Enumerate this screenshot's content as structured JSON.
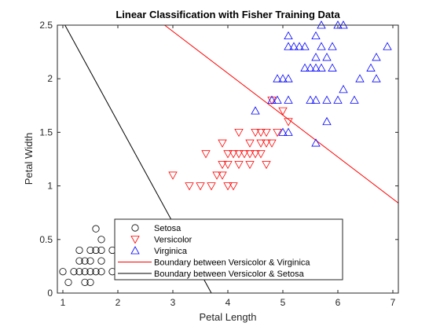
{
  "chart_data": {
    "type": "scatter",
    "title": "Linear Classification with Fisher Training Data",
    "xlabel": "Petal Length",
    "ylabel": "Petal Width",
    "xlim": [
      0.9,
      7.1
    ],
    "ylim": [
      0,
      2.5
    ],
    "xticks": [
      "1",
      "2",
      "3",
      "4",
      "5",
      "6",
      "7"
    ],
    "yticks": [
      "0",
      "0.5",
      "1",
      "1.5",
      "2",
      "2.5"
    ],
    "grid": false,
    "legend_position": "bottom-center",
    "series": [
      {
        "name": "Setosa",
        "marker": "circle",
        "color": "#000000",
        "points": [
          [
            1.0,
            0.2
          ],
          [
            1.1,
            0.1
          ],
          [
            1.2,
            0.2
          ],
          [
            1.3,
            0.2
          ],
          [
            1.3,
            0.3
          ],
          [
            1.3,
            0.4
          ],
          [
            1.4,
            0.1
          ],
          [
            1.4,
            0.2
          ],
          [
            1.4,
            0.3
          ],
          [
            1.5,
            0.1
          ],
          [
            1.5,
            0.2
          ],
          [
            1.5,
            0.3
          ],
          [
            1.5,
            0.4
          ],
          [
            1.6,
            0.2
          ],
          [
            1.6,
            0.4
          ],
          [
            1.6,
            0.6
          ],
          [
            1.7,
            0.2
          ],
          [
            1.7,
            0.3
          ],
          [
            1.7,
            0.4
          ],
          [
            1.7,
            0.5
          ],
          [
            1.9,
            0.2
          ],
          [
            1.9,
            0.4
          ]
        ]
      },
      {
        "name": "Versicolor",
        "marker": "triangle-down",
        "color": "#ff0000",
        "points": [
          [
            3.0,
            1.1
          ],
          [
            3.3,
            1.0
          ],
          [
            3.5,
            1.0
          ],
          [
            3.6,
            1.3
          ],
          [
            3.7,
            1.0
          ],
          [
            3.8,
            1.1
          ],
          [
            3.9,
            1.1
          ],
          [
            3.9,
            1.2
          ],
          [
            3.9,
            1.4
          ],
          [
            4.0,
            1.0
          ],
          [
            4.0,
            1.2
          ],
          [
            4.0,
            1.3
          ],
          [
            4.1,
            1.0
          ],
          [
            4.1,
            1.3
          ],
          [
            4.2,
            1.2
          ],
          [
            4.2,
            1.3
          ],
          [
            4.2,
            1.5
          ],
          [
            4.3,
            1.3
          ],
          [
            4.4,
            1.2
          ],
          [
            4.4,
            1.3
          ],
          [
            4.4,
            1.4
          ],
          [
            4.5,
            1.3
          ],
          [
            4.5,
            1.5
          ],
          [
            4.6,
            1.3
          ],
          [
            4.6,
            1.4
          ],
          [
            4.6,
            1.5
          ],
          [
            4.7,
            1.2
          ],
          [
            4.7,
            1.4
          ],
          [
            4.7,
            1.5
          ],
          [
            4.8,
            1.4
          ],
          [
            4.8,
            1.8
          ],
          [
            4.9,
            1.5
          ],
          [
            5.0,
            1.7
          ],
          [
            5.1,
            1.6
          ]
        ]
      },
      {
        "name": "Virginica",
        "marker": "triangle-up",
        "color": "#0000ff",
        "points": [
          [
            4.5,
            1.7
          ],
          [
            4.8,
            1.8
          ],
          [
            4.9,
            1.8
          ],
          [
            4.9,
            2.0
          ],
          [
            5.0,
            1.5
          ],
          [
            5.0,
            2.0
          ],
          [
            5.1,
            1.5
          ],
          [
            5.1,
            1.8
          ],
          [
            5.1,
            2.0
          ],
          [
            5.1,
            2.3
          ],
          [
            5.1,
            2.4
          ],
          [
            5.2,
            2.3
          ],
          [
            5.3,
            2.3
          ],
          [
            5.4,
            2.1
          ],
          [
            5.4,
            2.3
          ],
          [
            5.5,
            1.8
          ],
          [
            5.5,
            2.1
          ],
          [
            5.6,
            1.4
          ],
          [
            5.6,
            1.8
          ],
          [
            5.6,
            2.1
          ],
          [
            5.6,
            2.2
          ],
          [
            5.6,
            2.4
          ],
          [
            5.7,
            2.1
          ],
          [
            5.7,
            2.3
          ],
          [
            5.7,
            2.5
          ],
          [
            5.8,
            1.6
          ],
          [
            5.8,
            1.8
          ],
          [
            5.8,
            2.2
          ],
          [
            5.9,
            2.1
          ],
          [
            5.9,
            2.3
          ],
          [
            6.0,
            1.8
          ],
          [
            6.0,
            2.5
          ],
          [
            6.1,
            1.9
          ],
          [
            6.1,
            2.5
          ],
          [
            6.3,
            1.8
          ],
          [
            6.4,
            2.0
          ],
          [
            6.6,
            2.1
          ],
          [
            6.7,
            2.0
          ],
          [
            6.7,
            2.2
          ],
          [
            6.9,
            2.3
          ]
        ]
      }
    ],
    "lines": [
      {
        "name": "Boundary between Versicolor & Virginica",
        "color": "#ff0000",
        "points": [
          [
            2.85,
            2.5
          ],
          [
            7.1,
            0.84
          ]
        ]
      },
      {
        "name": "Boundary between Versicolor & Setosa",
        "color": "#000000",
        "points": [
          [
            0.9,
            2.63
          ],
          [
            3.7,
            0
          ]
        ]
      }
    ]
  }
}
